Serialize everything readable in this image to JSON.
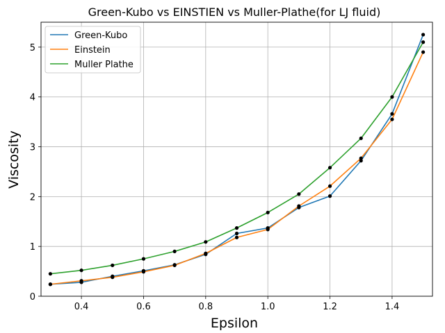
{
  "chart_data": {
    "type": "line",
    "title": "Green-Kubo vs EINSTIEN vs Muller-Plathe(for LJ fluid)",
    "xlabel": "Epsilon",
    "ylabel": "Viscosity",
    "x": [
      0.3,
      0.4,
      0.5,
      0.6,
      0.7,
      0.8,
      0.9,
      1.0,
      1.1,
      1.2,
      1.3,
      1.4,
      1.5
    ],
    "xlim": [
      0.27,
      1.53
    ],
    "ylim": [
      0,
      5.5
    ],
    "xticks": [
      0.4,
      0.6,
      0.8,
      1.0,
      1.2,
      1.4
    ],
    "xtick_labels": [
      "0.4",
      "0.6",
      "0.8",
      "1.0",
      "1.2",
      "1.4"
    ],
    "yticks": [
      0,
      1,
      2,
      3,
      4,
      5
    ],
    "ytick_labels": [
      "0",
      "1",
      "2",
      "3",
      "4",
      "5"
    ],
    "grid": true,
    "legend_position": "top-left",
    "marker_color": "#000000",
    "series": [
      {
        "name": "Green-Kubo",
        "color": "#1f77b4",
        "values": [
          0.24,
          0.28,
          0.4,
          0.51,
          0.63,
          0.84,
          1.26,
          1.37,
          1.78,
          2.01,
          2.72,
          3.66,
          5.25
        ]
      },
      {
        "name": "Einstein",
        "color": "#ff7f0e",
        "values": [
          0.24,
          0.31,
          0.38,
          0.49,
          0.62,
          0.86,
          1.18,
          1.34,
          1.81,
          2.21,
          2.77,
          3.55,
          4.9
        ]
      },
      {
        "name": "Muller Plathe",
        "color": "#2ca02c",
        "values": [
          0.45,
          0.52,
          0.62,
          0.75,
          0.9,
          1.09,
          1.37,
          1.68,
          2.05,
          2.58,
          3.17,
          4.0,
          5.1
        ]
      }
    ]
  }
}
